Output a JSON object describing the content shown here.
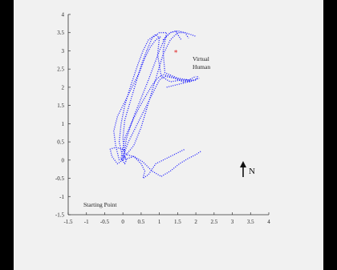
{
  "chart_data": {
    "type": "scatter",
    "title": "",
    "xlabel": "",
    "ylabel": "",
    "xlim": [
      -1.5,
      4
    ],
    "ylim": [
      -1.5,
      4
    ],
    "x_ticks": [
      "-1.5",
      "-1",
      "-0.5",
      "0",
      "0.5",
      "1",
      "1.5",
      "2",
      "2.5",
      "3",
      "3.5",
      "4"
    ],
    "y_ticks": [
      "4",
      "3.5",
      "3",
      "2.5",
      "2",
      "1.5",
      "1",
      "0.5",
      "0",
      "-0.5",
      "-1",
      "-1.5"
    ],
    "grid": false,
    "trajectory_color": "#1a1aff",
    "marker_color": "#e02020",
    "virtual_human": {
      "x": 1.45,
      "y": 2.95
    },
    "labels": {
      "virtual_human_line1": "Virtual",
      "virtual_human_line2": "Human",
      "starting_point": "Starting Point",
      "north": "N"
    },
    "series": [
      {
        "x": [
          0.0,
          -0.1,
          -0.05,
          0.05,
          0.2,
          0.4,
          0.55,
          0.7,
          0.9,
          1.0,
          0.95,
          1.05,
          1.3,
          1.6,
          1.9
        ],
        "y": [
          0.05,
          0.5,
          1.0,
          1.5,
          2.0,
          2.6,
          3.0,
          3.3,
          3.45,
          3.35,
          2.9,
          2.3,
          2.15,
          2.2,
          2.2
        ]
      },
      {
        "x": [
          0.05,
          0.0,
          0.05,
          0.2,
          0.35,
          0.5,
          0.65,
          0.8,
          1.0,
          1.2,
          1.1,
          1.15,
          1.5,
          1.8,
          2.0
        ],
        "y": [
          0.05,
          0.6,
          1.1,
          1.6,
          2.1,
          2.6,
          3.0,
          3.35,
          3.5,
          3.5,
          3.0,
          2.4,
          2.25,
          2.2,
          2.3
        ]
      },
      {
        "x": [
          0.0,
          0.1,
          0.3,
          0.5,
          0.7,
          0.85,
          1.0,
          1.15,
          1.3,
          1.45,
          1.5,
          1.6
        ],
        "y": [
          0.0,
          0.6,
          1.2,
          1.7,
          2.2,
          2.6,
          3.0,
          3.35,
          3.5,
          3.55,
          3.45,
          3.3
        ]
      },
      {
        "x": [
          0.05,
          0.3,
          0.5,
          0.65,
          0.8,
          0.95,
          1.1,
          1.3,
          1.5,
          1.7,
          1.8
        ],
        "y": [
          0.1,
          0.4,
          0.9,
          1.4,
          1.9,
          2.4,
          2.9,
          3.3,
          3.5,
          3.5,
          3.35
        ]
      },
      {
        "x": [
          -0.1,
          -0.2,
          -0.25,
          -0.15,
          0.05,
          0.25,
          0.45,
          0.6,
          0.75,
          0.9,
          1.05
        ],
        "y": [
          0.0,
          0.4,
          0.8,
          1.2,
          1.6,
          2.0,
          2.4,
          2.8,
          3.1,
          3.3,
          3.4
        ]
      },
      {
        "x": [
          0.0,
          0.15,
          0.35,
          0.55,
          0.75,
          0.9,
          1.0,
          1.15,
          1.4,
          1.65,
          1.95,
          2.1
        ],
        "y": [
          0.1,
          0.5,
          0.9,
          1.3,
          1.7,
          2.0,
          2.2,
          2.3,
          2.25,
          2.15,
          2.2,
          2.25
        ]
      },
      {
        "x": [
          -0.05,
          0.05,
          0.25,
          0.45,
          0.65,
          0.8,
          0.95,
          1.1,
          1.3,
          1.6,
          1.85
        ],
        "y": [
          0.05,
          0.6,
          1.05,
          1.45,
          1.8,
          2.05,
          2.25,
          2.35,
          2.3,
          2.2,
          2.15
        ]
      },
      {
        "x": [
          0.0,
          -0.15,
          -0.3,
          -0.35,
          -0.2,
          0.0,
          0.1,
          0.3,
          0.5,
          0.6,
          0.55,
          0.7,
          0.9,
          1.1,
          1.3,
          1.5,
          1.7
        ],
        "y": [
          0.0,
          -0.1,
          0.1,
          0.3,
          0.35,
          0.3,
          0.15,
          0.1,
          -0.1,
          -0.3,
          -0.5,
          -0.4,
          -0.1,
          0.0,
          0.1,
          0.2,
          0.3
        ]
      },
      {
        "x": [
          0.0,
          0.3,
          0.55,
          0.8,
          1.05,
          1.3,
          1.55,
          1.8,
          2.0,
          2.15
        ],
        "y": [
          0.0,
          0.1,
          -0.05,
          -0.3,
          -0.45,
          -0.3,
          -0.1,
          0.05,
          0.15,
          0.25
        ]
      },
      {
        "x": [
          -0.05,
          0.05,
          0.1,
          0.05,
          -0.05
        ],
        "y": [
          0.0,
          0.1,
          0.0,
          -0.1,
          0.05
        ]
      },
      {
        "x": [
          1.1,
          1.3,
          1.5,
          1.7,
          1.85,
          2.0
        ],
        "y": [
          3.3,
          3.5,
          3.55,
          3.5,
          3.45,
          3.4
        ]
      },
      {
        "x": [
          1.2,
          1.4,
          1.6,
          1.8,
          2.0,
          2.05
        ],
        "y": [
          2.0,
          2.05,
          2.1,
          2.15,
          2.2,
          2.3
        ]
      }
    ]
  }
}
